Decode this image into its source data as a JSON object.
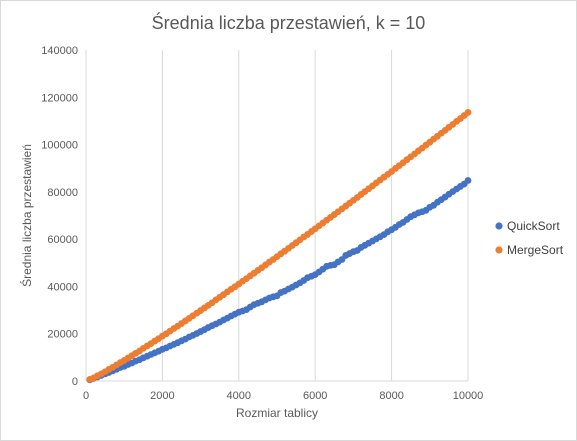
{
  "chart_data": {
    "type": "scatter",
    "title": "Średnia liczba przestawień, k = 10",
    "xlabel": "Rozmiar tablicy",
    "ylabel": "Średnia liczba przestawień",
    "xlim": [
      0,
      10000
    ],
    "ylim": [
      0,
      140000
    ],
    "xticks": [
      0,
      2000,
      4000,
      6000,
      8000,
      10000
    ],
    "yticks": [
      0,
      20000,
      40000,
      60000,
      80000,
      100000,
      120000,
      140000
    ],
    "grid": {
      "vertical": true,
      "horizontal": false
    },
    "legend_position": "right",
    "series": [
      {
        "name": "QuickSort",
        "color": "#4472c4",
        "x": [
          100,
          200,
          300,
          400,
          500,
          600,
          700,
          800,
          900,
          1000,
          1100,
          1200,
          1300,
          1400,
          1500,
          1600,
          1700,
          1800,
          1900,
          2000,
          2100,
          2200,
          2300,
          2400,
          2500,
          2600,
          2700,
          2800,
          2900,
          3000,
          3100,
          3200,
          3300,
          3400,
          3500,
          3600,
          3700,
          3800,
          3900,
          4000,
          4100,
          4200,
          4300,
          4400,
          4500,
          4600,
          4700,
          4800,
          4900,
          5000,
          5100,
          5200,
          5300,
          5400,
          5500,
          5600,
          5700,
          5800,
          5900,
          6000,
          6100,
          6200,
          6300,
          6400,
          6500,
          6600,
          6700,
          6800,
          6900,
          7000,
          7100,
          7200,
          7300,
          7400,
          7500,
          7600,
          7700,
          7800,
          7900,
          8000,
          8100,
          8200,
          8300,
          8400,
          8500,
          8600,
          8700,
          8800,
          8900,
          9000,
          9100,
          9200,
          9300,
          9400,
          9500,
          9600,
          9700,
          9800,
          9900,
          10000
        ],
        "y": [
          500,
          1100,
          1700,
          2400,
          3000,
          3600,
          4300,
          5000,
          5700,
          6200,
          7000,
          7600,
          8400,
          9000,
          9800,
          10500,
          11200,
          11900,
          12600,
          13400,
          14000,
          14800,
          15500,
          16200,
          17000,
          17700,
          18600,
          19300,
          20100,
          20900,
          21700,
          22600,
          23400,
          24100,
          24900,
          25800,
          26600,
          27500,
          28300,
          29100,
          29600,
          30200,
          31300,
          32300,
          32900,
          33500,
          34300,
          35100,
          35600,
          36000,
          37400,
          38000,
          38900,
          39700,
          40600,
          41500,
          42500,
          43700,
          44300,
          45000,
          46100,
          47300,
          48500,
          48900,
          49200,
          50400,
          51400,
          53100,
          53900,
          54700,
          55200,
          56500,
          57400,
          58300,
          59200,
          60100,
          61000,
          61900,
          63100,
          64000,
          65000,
          66200,
          67100,
          68300,
          69500,
          70300,
          71100,
          71600,
          72200,
          73500,
          74300,
          75600,
          76700,
          77800,
          79000,
          80100,
          81200,
          82300,
          83300,
          84800
        ]
      },
      {
        "name": "MergeSort",
        "color": "#ed7d31",
        "x": [
          100,
          200,
          300,
          400,
          500,
          600,
          700,
          800,
          900,
          1000,
          1100,
          1200,
          1300,
          1400,
          1500,
          1600,
          1700,
          1800,
          1900,
          2000,
          2100,
          2200,
          2300,
          2400,
          2500,
          2600,
          2700,
          2800,
          2900,
          3000,
          3100,
          3200,
          3300,
          3400,
          3500,
          3600,
          3700,
          3800,
          3900,
          4000,
          4100,
          4200,
          4300,
          4400,
          4500,
          4600,
          4700,
          4800,
          4900,
          5000,
          5100,
          5200,
          5300,
          5400,
          5500,
          5600,
          5700,
          5800,
          5900,
          6000,
          6100,
          6200,
          6300,
          6400,
          6500,
          6600,
          6700,
          6800,
          6900,
          7000,
          7100,
          7200,
          7300,
          7400,
          7500,
          7600,
          7700,
          7800,
          7900,
          8000,
          8100,
          8200,
          8300,
          8400,
          8500,
          8600,
          8700,
          8800,
          8900,
          9000,
          9100,
          9200,
          9300,
          9400,
          9500,
          9600,
          9700,
          9800,
          9900,
          10000
        ],
        "y": [
          700,
          1300,
          2200,
          3000,
          3900,
          4900,
          5800,
          6800,
          7800,
          8700,
          9700,
          10700,
          11700,
          12700,
          13800,
          14800,
          15800,
          16900,
          17900,
          19000,
          20000,
          21100,
          22200,
          23200,
          24300,
          25400,
          26500,
          27600,
          28700,
          29800,
          30900,
          32000,
          33100,
          34300,
          35400,
          36500,
          37700,
          38800,
          39900,
          41000,
          42200,
          43300,
          44500,
          45600,
          46800,
          47900,
          49100,
          50300,
          51400,
          52600,
          53800,
          54900,
          56100,
          57300,
          58500,
          59700,
          60900,
          62000,
          63200,
          64400,
          65600,
          66800,
          68000,
          69200,
          70400,
          71600,
          72800,
          74000,
          75200,
          76400,
          77600,
          78900,
          80100,
          81300,
          82500,
          83800,
          85000,
          86200,
          87400,
          88600,
          89900,
          91100,
          92300,
          93600,
          94800,
          96000,
          97300,
          98500,
          99800,
          101000,
          102300,
          103500,
          104800,
          106000,
          107300,
          108500,
          109800,
          111000,
          112300,
          113600
        ]
      }
    ]
  }
}
